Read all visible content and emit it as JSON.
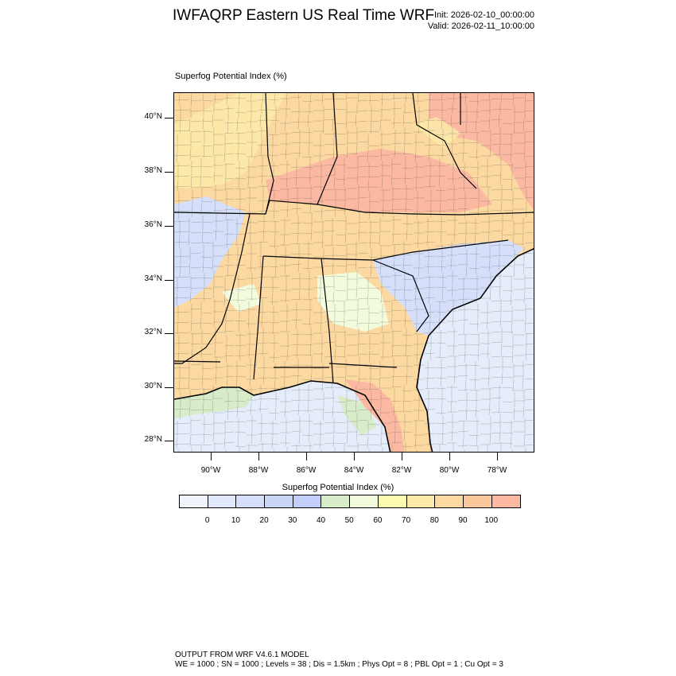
{
  "header": {
    "title": "IWFAQRP Eastern US Real Time WRF",
    "init": "Init: 2026-02-10_00:00:00",
    "valid": "Valid: 2026-02-11_10:00:00"
  },
  "field_label": "Superfog Potential Index   (%)",
  "axes": {
    "lat_labels": [
      "40°N",
      "38°N",
      "36°N",
      "34°N",
      "32°N",
      "30°N",
      "28°N"
    ],
    "lon_labels": [
      "90°W",
      "88°W",
      "86°W",
      "84°W",
      "82°W",
      "80°W",
      "78°W"
    ]
  },
  "colorbar": {
    "title": "Superfog Potential Index  (%)",
    "colors": [
      "#f0f4fa",
      "#e2e8fb",
      "#d5dff9",
      "#c9d6f7",
      "#c3cffa",
      "#d9ecc9",
      "#f2fbdc",
      "#fcfcae",
      "#fbeaaa",
      "#fcd9a0",
      "#fac79a",
      "#fcb9a2"
    ],
    "ticks": [
      "0",
      "10",
      "20",
      "30",
      "40",
      "50",
      "60",
      "70",
      "80",
      "90",
      "100"
    ]
  },
  "footer": {
    "line1": "OUTPUT FROM WRF V4.6.1 MODEL",
    "line2": "WE = 1000 ; SN = 1000 ; Levels = 38 ; Dis = 1.5km ; Phys Opt = 8 ; PBL Opt = 1 ; Cu Opt = 3"
  }
}
